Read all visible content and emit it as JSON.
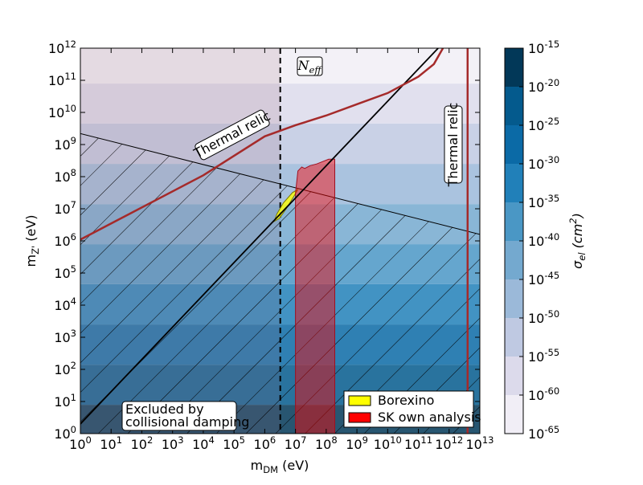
{
  "chart_data": {
    "type": "exclusion",
    "x_label": "m_DM (eV)",
    "y_label": "m_Z' (eV)",
    "xlim": [
      1,
      10000000000000.0
    ],
    "ylim": [
      1,
      1000000000000.0
    ],
    "log_x": true,
    "log_y": true,
    "xticks": [
      {
        "value": 1,
        "label": "10^0"
      },
      {
        "value": 10,
        "label": "10^1"
      },
      {
        "value": 100,
        "label": "10^2"
      },
      {
        "value": 1000,
        "label": "10^3"
      },
      {
        "value": 10000,
        "label": "10^4"
      },
      {
        "value": 100000,
        "label": "10^5"
      },
      {
        "value": 1000000,
        "label": "10^6"
      },
      {
        "value": 10000000.0,
        "label": "10^7"
      },
      {
        "value": 100000000.0,
        "label": "10^8"
      },
      {
        "value": 1000000000.0,
        "label": "10^9"
      },
      {
        "value": 10000000000.0,
        "label": "10^10"
      },
      {
        "value": 100000000000.0,
        "label": "10^11"
      },
      {
        "value": 1000000000000.0,
        "label": "10^12"
      },
      {
        "value": 10000000000000.0,
        "label": "10^13"
      }
    ],
    "yticks": [
      {
        "value": 1,
        "label": "10^0"
      },
      {
        "value": 10,
        "label": "10^1"
      },
      {
        "value": 100,
        "label": "10^2"
      },
      {
        "value": 1000,
        "label": "10^3"
      },
      {
        "value": 10000,
        "label": "10^4"
      },
      {
        "value": 100000,
        "label": "10^5"
      },
      {
        "value": 1000000,
        "label": "10^6"
      },
      {
        "value": 10000000.0,
        "label": "10^7"
      },
      {
        "value": 100000000.0,
        "label": "10^8"
      },
      {
        "value": 1000000000.0,
        "label": "10^9"
      },
      {
        "value": 10000000000.0,
        "label": "10^10"
      },
      {
        "value": 100000000000.0,
        "label": "10^11"
      },
      {
        "value": 1000000000000.0,
        "label": "10^12"
      }
    ],
    "contour": {
      "y_edges": [
        1,
        7.9,
        140,
        2500,
        45000,
        790000,
        14000000.0,
        250000000.0,
        4500000000.0,
        79000000000.0,
        1000000000000.0
      ]
    },
    "colorbar": {
      "label": "σ_el (cm^2)",
      "levels": [
        1e-65,
        1e-60,
        1e-55,
        1e-50,
        1e-45,
        1e-40,
        1e-35,
        1e-30,
        1e-25,
        1e-20,
        1e-15
      ],
      "ticks": [
        {
          "value": 1e-65,
          "label": "10^-65"
        },
        {
          "value": 1e-60,
          "label": "10^-60"
        },
        {
          "value": 1e-55,
          "label": "10^-55"
        },
        {
          "value": 1e-50,
          "label": "10^-50"
        },
        {
          "value": 1e-45,
          "label": "10^-45"
        },
        {
          "value": 1e-40,
          "label": "10^-40"
        },
        {
          "value": 1e-35,
          "label": "10^-35"
        },
        {
          "value": 1e-30,
          "label": "10^-30"
        },
        {
          "value": 1e-25,
          "label": "10^-25"
        },
        {
          "value": 1e-20,
          "label": "10^-20"
        },
        {
          "value": 1e-15,
          "label": "10^-15"
        }
      ],
      "colors": [
        "#f1eef6",
        "#dcdaeb",
        "#bfc9e2",
        "#9bb9d9",
        "#74a9cf",
        "#4a97c5",
        "#2180b9",
        "#0b6aa6",
        "#045a8d",
        "#023858"
      ]
    },
    "n_eff_bound": 3200000,
    "n_eff_label": "N_eff",
    "damping_label": [
      "Excluded by",
      "collisional damping"
    ],
    "thermal_relic_label": "Thermal relic",
    "damping_boundary": {
      "x": [
        1,
        10000000000000.0
      ],
      "y": [
        2200000000,
        1600000
      ]
    },
    "thermal_relic": {
      "color": "#a52a2a",
      "x": [
        1,
        10000,
        1000000,
        10000000.0,
        100000000.0,
        1000000000.0,
        10000000000.0,
        100000000000.0,
        320000000000.0,
        630000000000.0
      ],
      "y": [
        1100000,
        110000000,
        1800000000,
        4000000000,
        8000000000,
        18000000000,
        40000000000,
        130000000000,
        320000000000,
        1000000000000.0
      ]
    },
    "thermal_relic_vertical": {
      "color": "#a52a2a",
      "x": [
        4000000000000.0,
        4000000000000.0
      ],
      "y": [
        1,
        1000000000000.0
      ]
    },
    "diagonal": {
      "color": "#000000",
      "x": [
        1,
        440000000000.0
      ],
      "y": [
        2,
        1000000000000.0
      ]
    },
    "series": [
      {
        "name": "Borexino",
        "color": "#ffff00",
        "x": [
          2000000,
          2500000,
          4000000,
          8000000,
          12000000,
          9000000,
          5000000,
          3000000
        ],
        "y": [
          4000000,
          7000000,
          15000000,
          32000000,
          40000000,
          25000000,
          10000000,
          5000000
        ]
      },
      {
        "name": "SK own analysis",
        "color": "#ff0000",
        "x": [
          10000000,
          10000000,
          12000000,
          16000000,
          20000000,
          30000000,
          50000000,
          80000000,
          120000000,
          190000000,
          190000000
        ],
        "y": [
          1,
          30000000,
          150000000,
          200000000,
          180000000,
          220000000,
          250000000,
          300000000,
          350000000,
          350000000,
          1
        ]
      }
    ]
  }
}
